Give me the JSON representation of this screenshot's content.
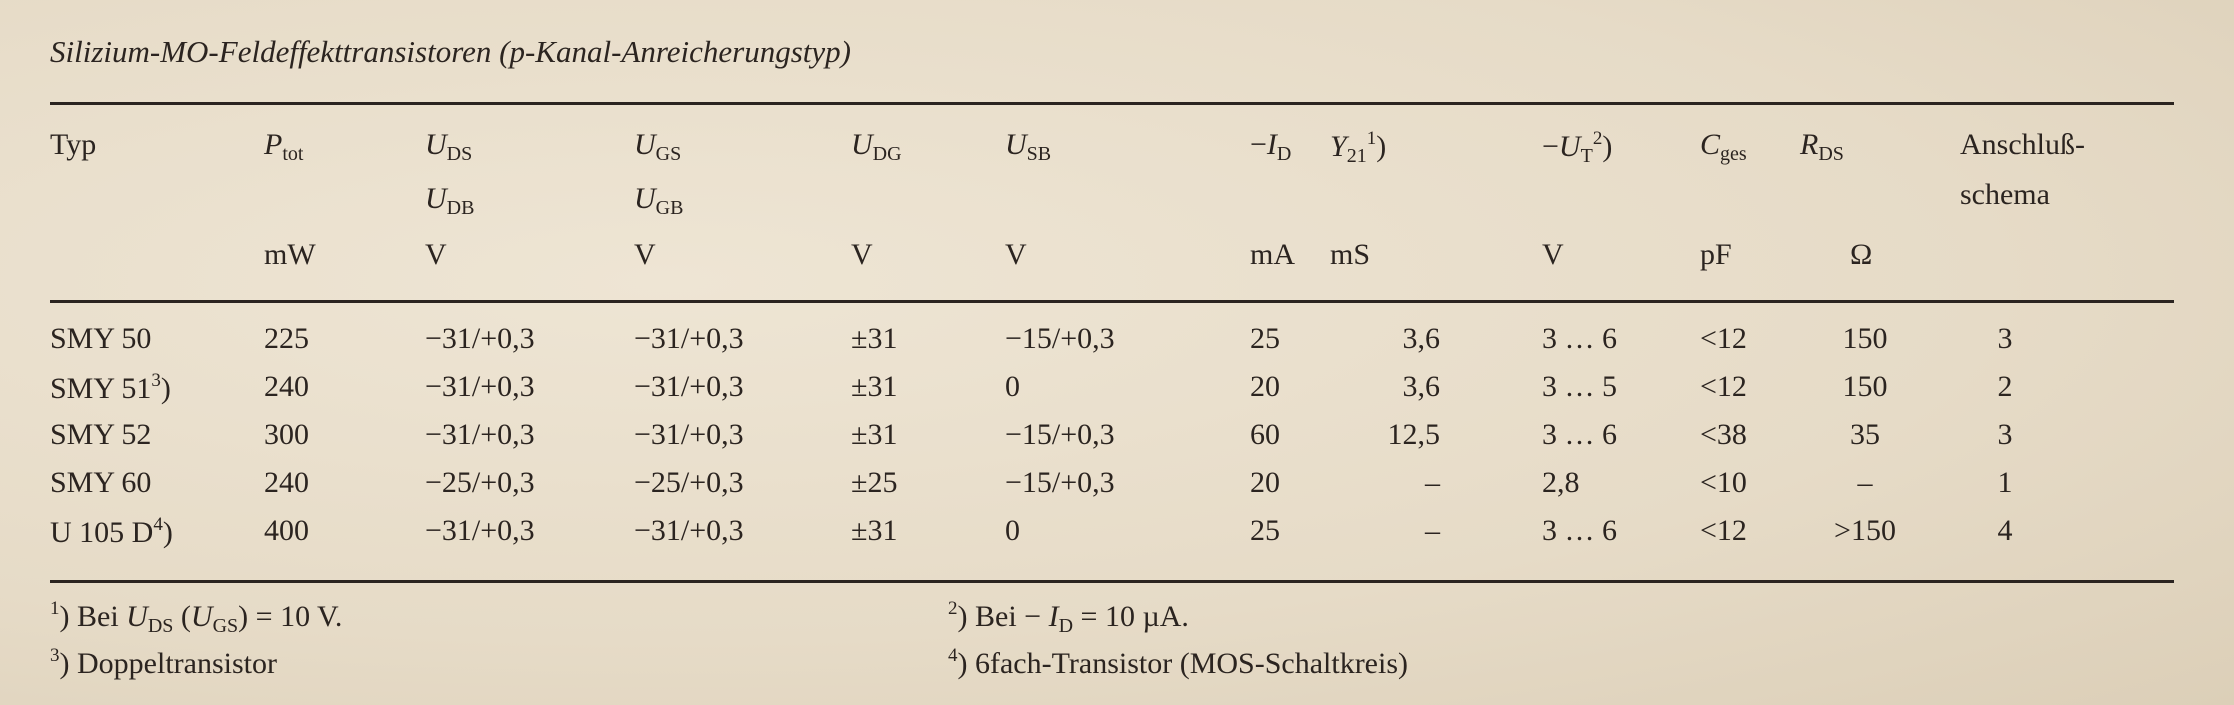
{
  "title": "Silizium-MO-Feldeffekttransistoren (p-Kanal-Anreicherungstyp)",
  "columns": [
    {
      "label": "Typ",
      "unit": ""
    },
    {
      "symbol": "P",
      "sub": "tot",
      "unit": "mW"
    },
    {
      "symbol": "U",
      "sub": "DS",
      "symbol2": "U",
      "sub2": "DB",
      "unit": "V"
    },
    {
      "symbol": "U",
      "sub": "GS",
      "symbol2": "U",
      "sub2": "GB",
      "unit": "V"
    },
    {
      "symbol": "U",
      "sub": "DG",
      "unit": "V"
    },
    {
      "symbol": "U",
      "sub": "SB",
      "unit": "V"
    },
    {
      "prefix": "−",
      "symbol": "I",
      "sub": "D",
      "unit": "mA"
    },
    {
      "symbol": "Y",
      "sub": "21",
      "note": "1",
      "suffix": ")",
      "unit": "mS"
    },
    {
      "prefix": "−",
      "symbol": "U",
      "sub": "T",
      "note": "2",
      "suffix": ")",
      "unit": "V"
    },
    {
      "symbol": "C",
      "sub": "ges",
      "unit": "pF"
    },
    {
      "symbol": "R",
      "sub": "DS",
      "unit": "Ω"
    },
    {
      "label": "Anschluß-",
      "label2": "schema",
      "unit": ""
    }
  ],
  "rows": [
    {
      "typ": "SMY 50",
      "note": "",
      "cells": [
        "225",
        "−31/+0,3",
        "−31/+0,3",
        "±31",
        "−15/+0,3",
        "25",
        "3,6",
        "3 … 6",
        "<12",
        "150",
        "3"
      ]
    },
    {
      "typ": "SMY 51",
      "note": "3",
      "cells": [
        "240",
        "−31/+0,3",
        "−31/+0,3",
        "±31",
        "0",
        "20",
        "3,6",
        "3 … 5",
        "<12",
        "150",
        "2"
      ]
    },
    {
      "typ": "SMY 52",
      "note": "",
      "cells": [
        "300",
        "−31/+0,3",
        "−31/+0,3",
        "±31",
        "−15/+0,3",
        "60",
        "12,5",
        "3 … 6",
        "<38",
        "35",
        "3"
      ]
    },
    {
      "typ": "SMY 60",
      "note": "",
      "cells": [
        "240",
        "−25/+0,3",
        "−25/+0,3",
        "±25",
        "−15/+0,3",
        "20",
        "–",
        "2,8",
        "<10",
        "–",
        "1"
      ]
    },
    {
      "typ": "U 105 D",
      "note": "4",
      "cells": [
        "400",
        "−31/+0,3",
        "−31/+0,3",
        "±31",
        "0",
        "25",
        "–",
        "3 … 6",
        "<12",
        ">150",
        "4"
      ]
    }
  ],
  "footnotes": {
    "f1": {
      "mark": "1",
      "text_a": "Bei ",
      "sym1": "U",
      "sub1": "DS",
      "text_b": " (",
      "sym2": "U",
      "sub2": "GS",
      "text_c": ") = 10 V."
    },
    "f2": {
      "mark": "2",
      "text_a": "Bei − ",
      "sym1": "I",
      "sub1": "D",
      "text_b": " = 10 µA."
    },
    "f3": {
      "mark": "3",
      "text": "Doppeltransistor"
    },
    "f4": {
      "mark": "4",
      "text": "6fach-Transistor (MOS-Schaltkreis)"
    }
  }
}
